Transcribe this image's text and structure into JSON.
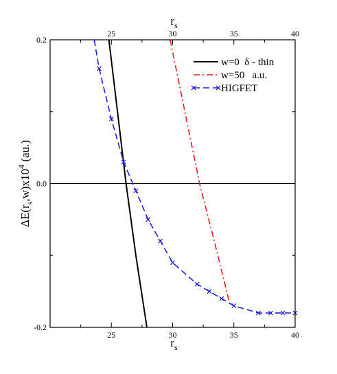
{
  "chart_data": {
    "type": "line",
    "xlabel_bottom": "r",
    "xlabel_bottom_sub": "s",
    "xlabel_top": "r",
    "xlabel_top_sub": "s",
    "ylabel": {
      "part1": "ΔE(r",
      "sub": "s",
      "part2": ",w)x10",
      "sup": "4",
      "part3": " (au.)"
    },
    "xlim": [
      20,
      40
    ],
    "ylim": [
      -0.2,
      0.2
    ],
    "x_ticks": [
      {
        "value": 25,
        "label": "25"
      },
      {
        "value": 30,
        "label": "30"
      },
      {
        "value": 35,
        "label": "35"
      },
      {
        "value": 40,
        "label": "40"
      }
    ],
    "y_ticks": [
      {
        "value": -0.2,
        "label": "-0.2"
      },
      {
        "value": 0.0,
        "label": "0.0"
      },
      {
        "value": 0.2,
        "label": "0.2"
      }
    ],
    "zero_line": 0.0,
    "series": [
      {
        "name": "w=0  δ - thin",
        "color": "#000000",
        "style": "solid",
        "marker": "none",
        "x": [
          24.8,
          25.5,
          26.2,
          27.0,
          27.9
        ],
        "y": [
          0.2,
          0.1,
          0.0,
          -0.1,
          -0.2
        ]
      },
      {
        "name": "w=50   a.u.",
        "color": "#e8191f",
        "style": "dashdot",
        "marker": "none",
        "x": [
          29.8,
          31.0,
          32.2,
          33.4,
          34.7
        ],
        "y": [
          0.2,
          0.1,
          0.0,
          -0.08,
          -0.17
        ]
      },
      {
        "name": "HIGFET",
        "color": "#1e22d4",
        "style": "dashed",
        "marker": "x",
        "x": [
          23.6,
          24,
          25,
          26,
          27,
          28,
          29,
          30,
          32,
          33,
          34,
          35,
          37,
          38,
          39,
          40
        ],
        "y": [
          0.2,
          0.16,
          0.09,
          0.03,
          -0.01,
          -0.05,
          -0.08,
          -0.11,
          -0.14,
          -0.15,
          -0.16,
          -0.17,
          -0.18,
          -0.18,
          -0.18,
          -0.18
        ],
        "markers_x": [
          24,
          25,
          26,
          27,
          28,
          29,
          30,
          32,
          33,
          34,
          35,
          37,
          38,
          39,
          40
        ],
        "markers_y": [
          0.16,
          0.09,
          0.03,
          -0.01,
          -0.05,
          -0.08,
          -0.11,
          -0.14,
          -0.15,
          -0.16,
          -0.17,
          -0.18,
          -0.18,
          -0.18,
          -0.18
        ]
      }
    ],
    "legend_position": "top-right"
  }
}
